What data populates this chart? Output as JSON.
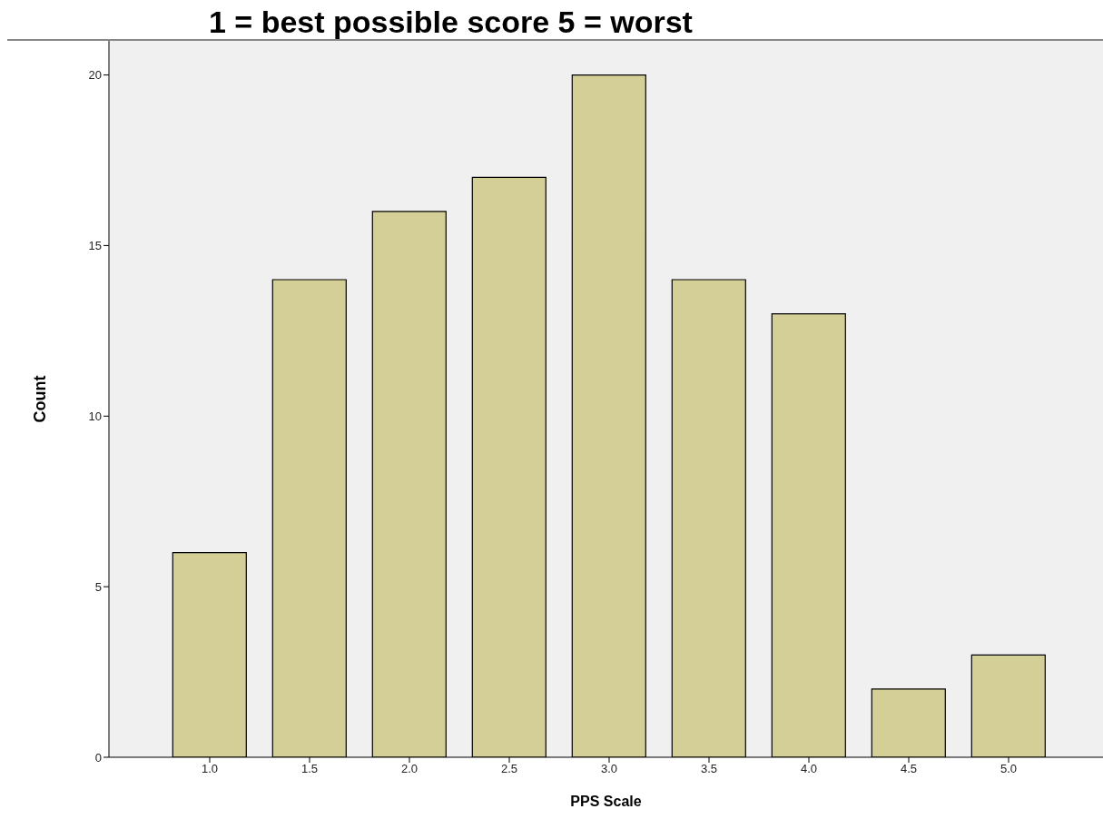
{
  "chart_data": {
    "type": "bar",
    "title": "1 = best possible score  5 = worst",
    "xlabel": "PPS Scale",
    "ylabel": "Count",
    "categories": [
      "1.0",
      "1.5",
      "2.0",
      "2.5",
      "3.0",
      "3.5",
      "4.0",
      "4.5",
      "5.0"
    ],
    "values": [
      6,
      14,
      16,
      17,
      20,
      14,
      13,
      2,
      3
    ],
    "color": "#d4cf97",
    "ylim": [
      0,
      21
    ],
    "yticks": [
      0,
      5,
      10,
      15,
      20
    ]
  }
}
